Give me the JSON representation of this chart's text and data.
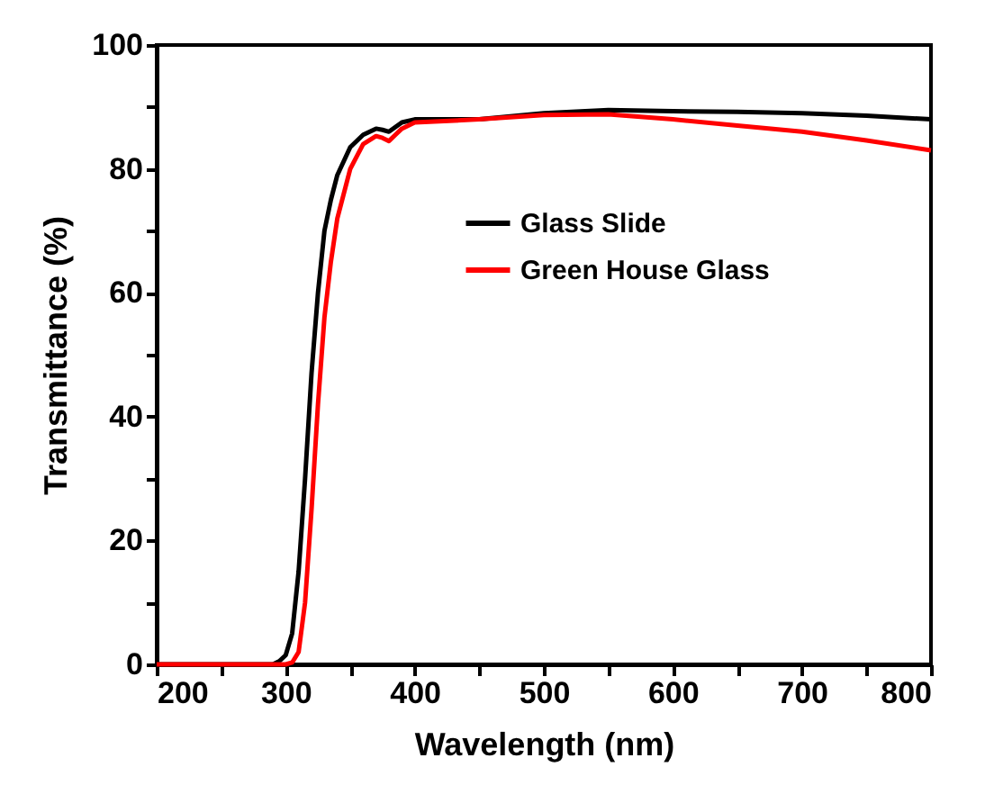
{
  "chart_data": {
    "type": "line",
    "xlabel": "Wavelength (nm)",
    "ylabel": "Transmittance (%)",
    "xlim": [
      200,
      800
    ],
    "ylim": [
      0,
      100
    ],
    "xticks": [
      200,
      {
        "value": 250,
        "label": null
      },
      300,
      {
        "value": 350,
        "label": null
      },
      400,
      {
        "value": 450,
        "label": null
      },
      500,
      {
        "value": 550,
        "label": null
      },
      600,
      {
        "value": 650,
        "label": null
      },
      700,
      {
        "value": 750,
        "label": null
      },
      800
    ],
    "yticks": [
      0,
      {
        "value": 10,
        "label": null
      },
      20,
      {
        "value": 30,
        "label": null
      },
      40,
      {
        "value": 50,
        "label": null
      },
      60,
      {
        "value": 70,
        "label": null
      },
      80,
      {
        "value": 90,
        "label": null
      },
      100
    ],
    "grid": false,
    "legend": "top right",
    "marker": "none",
    "line_style": "solid",
    "series": [
      {
        "name": "Glass Slide",
        "color": "#000000",
        "x": [
          200,
          250,
          290,
          295,
          300,
          305,
          310,
          315,
          320,
          325,
          330,
          335,
          340,
          350,
          360,
          370,
          375,
          380,
          390,
          400,
          450,
          500,
          550,
          600,
          650,
          700,
          750,
          800
        ],
        "values": [
          0,
          0,
          0,
          0.5,
          1.5,
          5,
          15,
          30,
          47,
          60,
          70,
          75,
          79,
          83.5,
          85.5,
          86.5,
          86.3,
          86,
          87.5,
          88,
          88,
          89,
          89.5,
          89.3,
          89.2,
          89,
          88.6,
          88
        ]
      },
      {
        "name": "Green House Glass",
        "color": "#ff0000",
        "x": [
          200,
          250,
          300,
          305,
          310,
          315,
          320,
          325,
          330,
          335,
          340,
          350,
          360,
          370,
          375,
          380,
          385,
          390,
          400,
          450,
          500,
          550,
          600,
          650,
          700,
          750,
          800
        ],
        "values": [
          0,
          0,
          0,
          0.3,
          2,
          10,
          25,
          42,
          56,
          65,
          72,
          80,
          84,
          85.3,
          85,
          84.5,
          85.5,
          86.5,
          87.5,
          88,
          88.7,
          88.8,
          88,
          87,
          86,
          84.6,
          83
        ]
      }
    ]
  }
}
